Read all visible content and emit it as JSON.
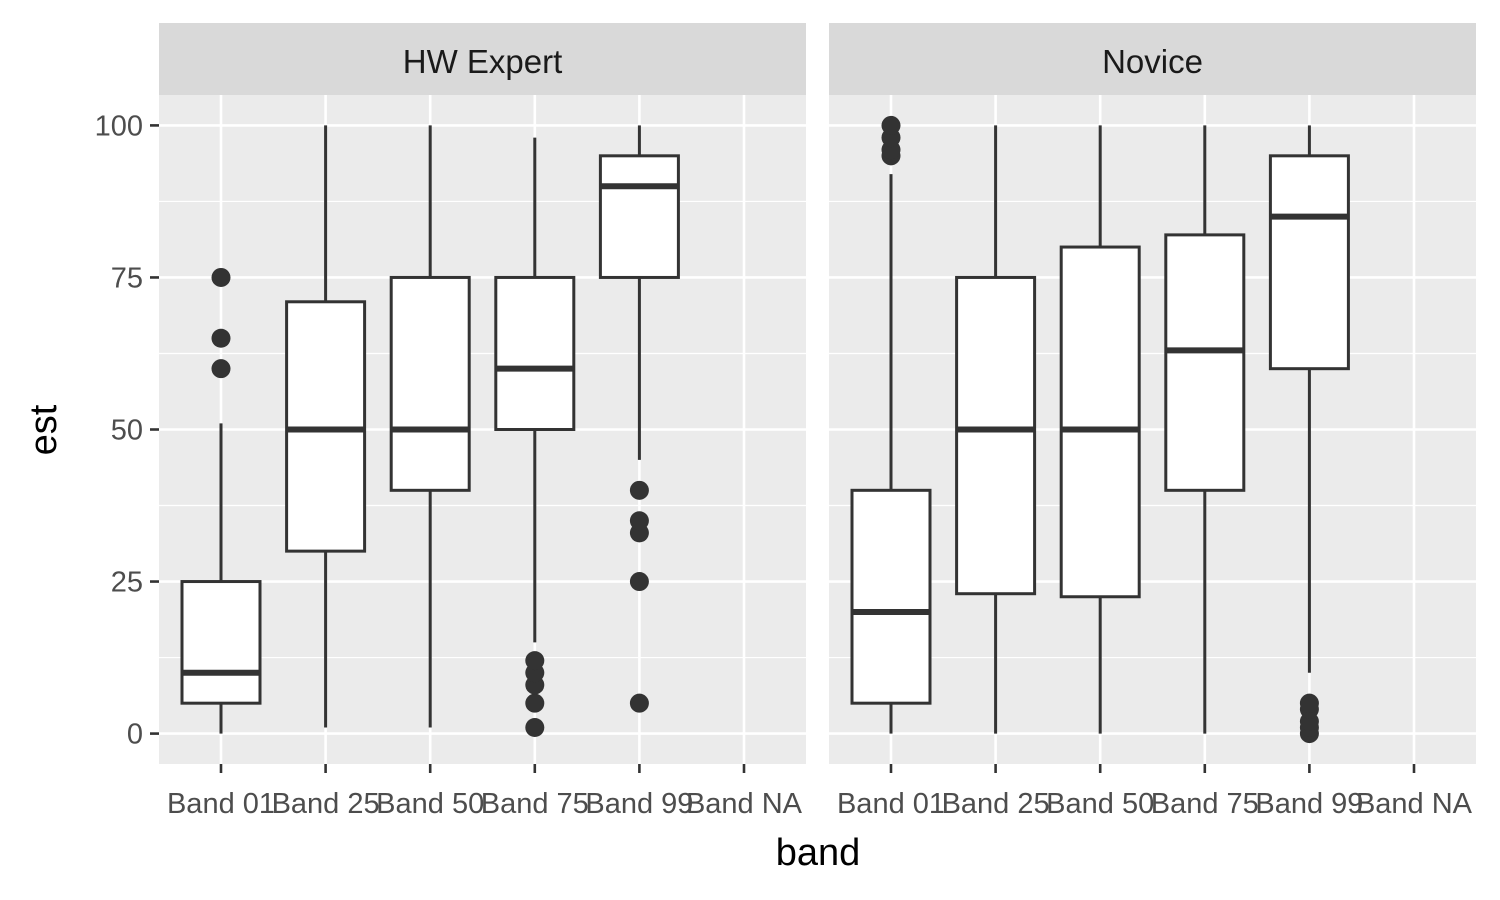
{
  "chart_data": {
    "type": "boxplot",
    "xlabel": "band",
    "ylabel": "est",
    "ylim": [
      -5,
      105
    ],
    "y_ticks": [
      0,
      25,
      50,
      75,
      100
    ],
    "y_tick_labels": [
      "0",
      "25",
      "50",
      "75",
      "100"
    ],
    "categories": [
      "Band 01",
      "Band 25",
      "Band 50",
      "Band 75",
      "Band 99",
      "Band NA"
    ],
    "grid": true,
    "colors": {
      "panel_bg": "#ebebeb",
      "strip_bg": "#d9d9d9",
      "grid": "#ffffff",
      "box_line": "#333333",
      "box_fill": "#ffffff"
    },
    "facets": [
      {
        "label": "HW Expert",
        "boxes": [
          {
            "category": "Band 01",
            "min": 0,
            "q1": 5,
            "median": 10,
            "q3": 25,
            "max": 51,
            "outliers": [
              60,
              65,
              75
            ]
          },
          {
            "category": "Band 25",
            "min": 1,
            "q1": 30,
            "median": 50,
            "q3": 71,
            "max": 100,
            "outliers": []
          },
          {
            "category": "Band 50",
            "min": 1,
            "q1": 40,
            "median": 50,
            "q3": 75,
            "max": 100,
            "outliers": []
          },
          {
            "category": "Band 75",
            "min": 15,
            "q1": 50,
            "median": 60,
            "q3": 75,
            "max": 98,
            "outliers": [
              1,
              5,
              8,
              10,
              12
            ]
          },
          {
            "category": "Band 99",
            "min": 45,
            "q1": 75,
            "median": 90,
            "q3": 95,
            "max": 100,
            "outliers": [
              5,
              25,
              33,
              35,
              40
            ]
          }
        ]
      },
      {
        "label": "Novice",
        "boxes": [
          {
            "category": "Band 01",
            "min": 0,
            "q1": 5,
            "median": 20,
            "q3": 40,
            "max": 92,
            "outliers": [
              95,
              96,
              98,
              100
            ]
          },
          {
            "category": "Band 25",
            "min": 0,
            "q1": 23,
            "median": 50,
            "q3": 75,
            "max": 100,
            "outliers": []
          },
          {
            "category": "Band 50",
            "min": 0,
            "q1": 22.5,
            "median": 50,
            "q3": 80,
            "max": 100,
            "outliers": []
          },
          {
            "category": "Band 75",
            "min": 0,
            "q1": 40,
            "median": 63,
            "q3": 82,
            "max": 100,
            "outliers": []
          },
          {
            "category": "Band 99",
            "min": 10,
            "q1": 60,
            "median": 85,
            "q3": 95,
            "max": 100,
            "outliers": [
              0,
              1,
              2,
              4,
              5
            ]
          }
        ]
      }
    ]
  }
}
